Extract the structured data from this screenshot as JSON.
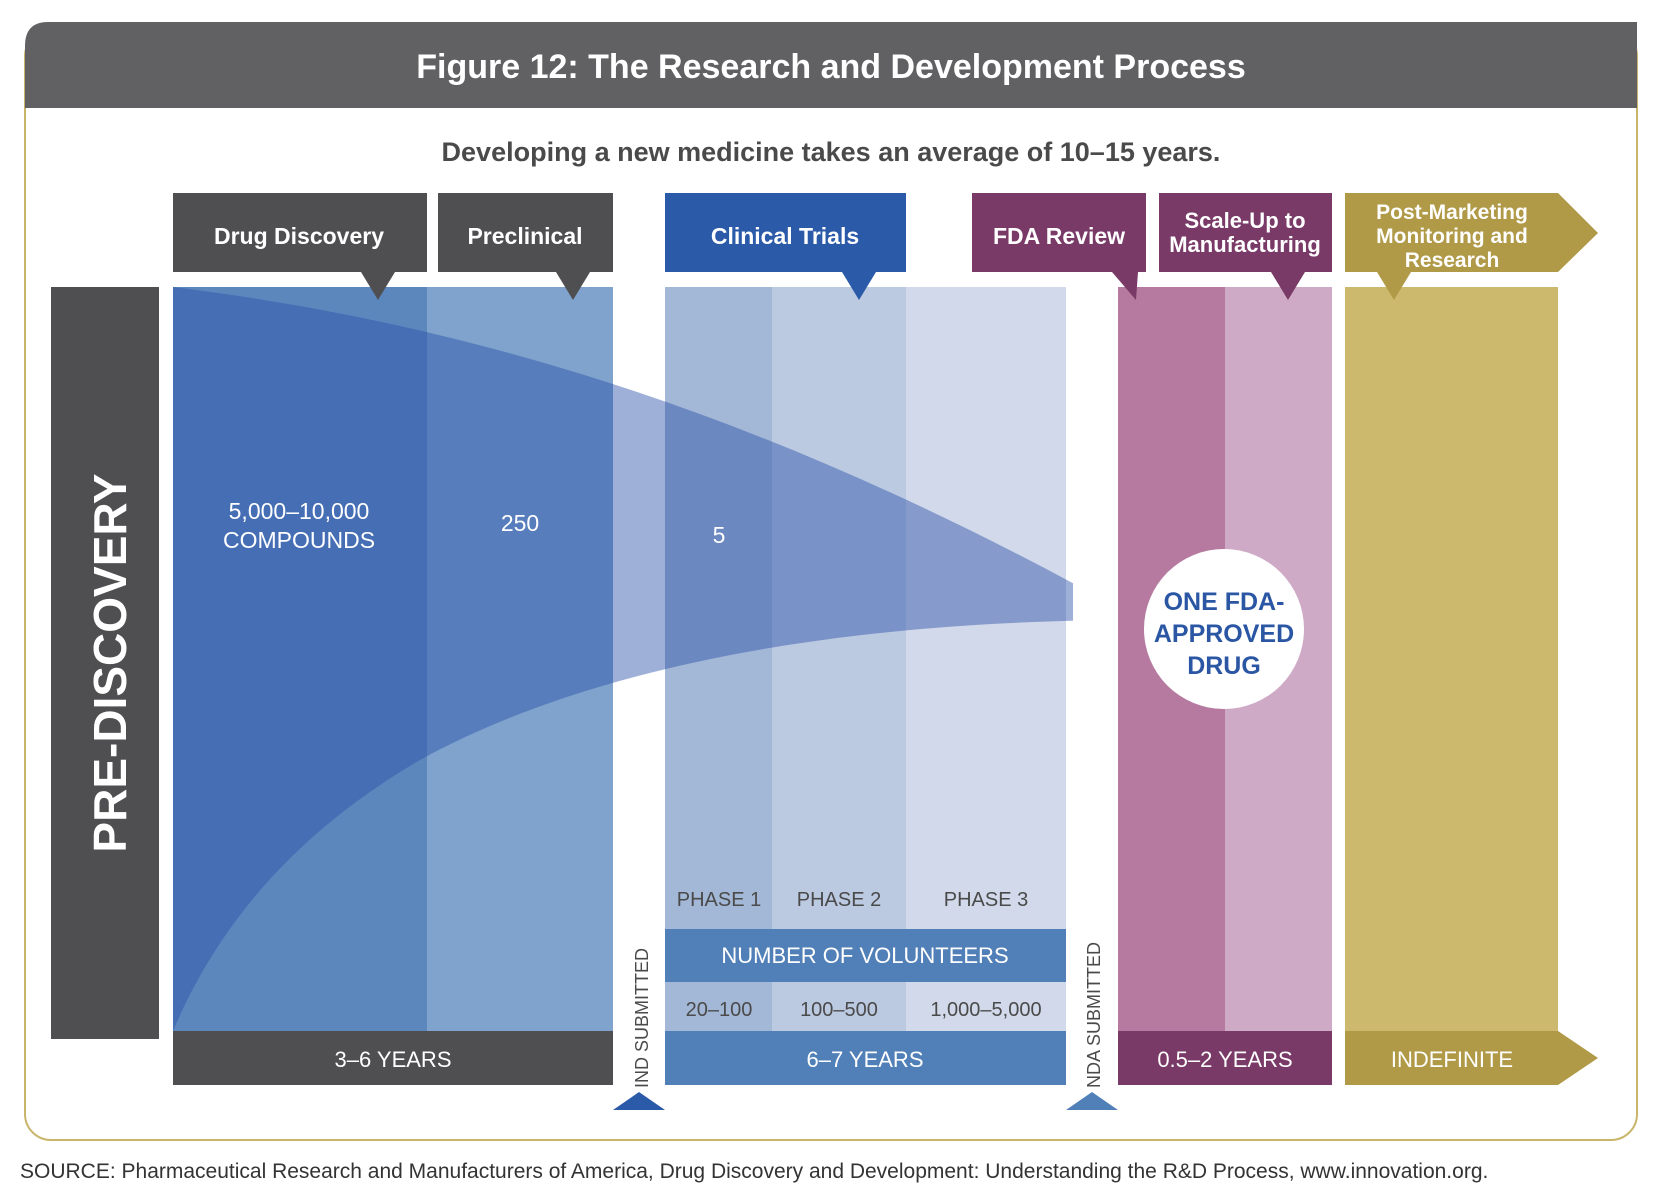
{
  "title": "Figure 12: The Research and Development Process",
  "subtitle": "Developing a new medicine takes an average of 10–15 years.",
  "pre_discovery": "PRE-DISCOVERY",
  "stages": {
    "drug_discovery": "Drug Discovery",
    "preclinical": "Preclinical",
    "clinical_trials": "Clinical Trials",
    "fda_review": "FDA Review",
    "scale_up": [
      "Scale-Up to",
      "Manufacturing"
    ],
    "post_marketing": [
      "Post-Marketing",
      "Monitoring and",
      "Research"
    ]
  },
  "counts": {
    "compounds": [
      "5,000–10,000",
      "COMPOUNDS"
    ],
    "preclinical": "250",
    "clinical": "5"
  },
  "result": [
    "ONE FDA-",
    "APPROVED",
    "DRUG"
  ],
  "phases": [
    "PHASE 1",
    "PHASE 2",
    "PHASE 3"
  ],
  "volunteers_label": "NUMBER OF VOLUNTEERS",
  "volunteers": [
    "20–100",
    "100–500",
    "1,000–5,000"
  ],
  "durations": {
    "discovery": "3–6 YEARS",
    "clinical": "6–7 YEARS",
    "review": "0.5–2 YEARS",
    "post": "INDEFINITE"
  },
  "markers": {
    "ind": "IND SUBMITTED",
    "nda": "NDA SUBMITTED"
  },
  "source": "SOURCE: Pharmaceutical Research and Manufacturers of America, Drug Discovery and Development: Understanding the R&D Process, www.innovation.org.",
  "colors": {
    "header_gray": "#616163",
    "dark_gray": "#4f4f51",
    "blue_dark": "#3f6aa9",
    "blue_mid": "#5b87bd",
    "blue_light": "#7fa3cd",
    "clinical_blue": "#2b5aa8",
    "purple": "#7a3a68",
    "mauve": "#b67aa0",
    "mauve_light": "#cfaac6",
    "gold": "#b09a48",
    "gold_light": "#cdb96e",
    "result_text": "#2a56a4"
  }
}
